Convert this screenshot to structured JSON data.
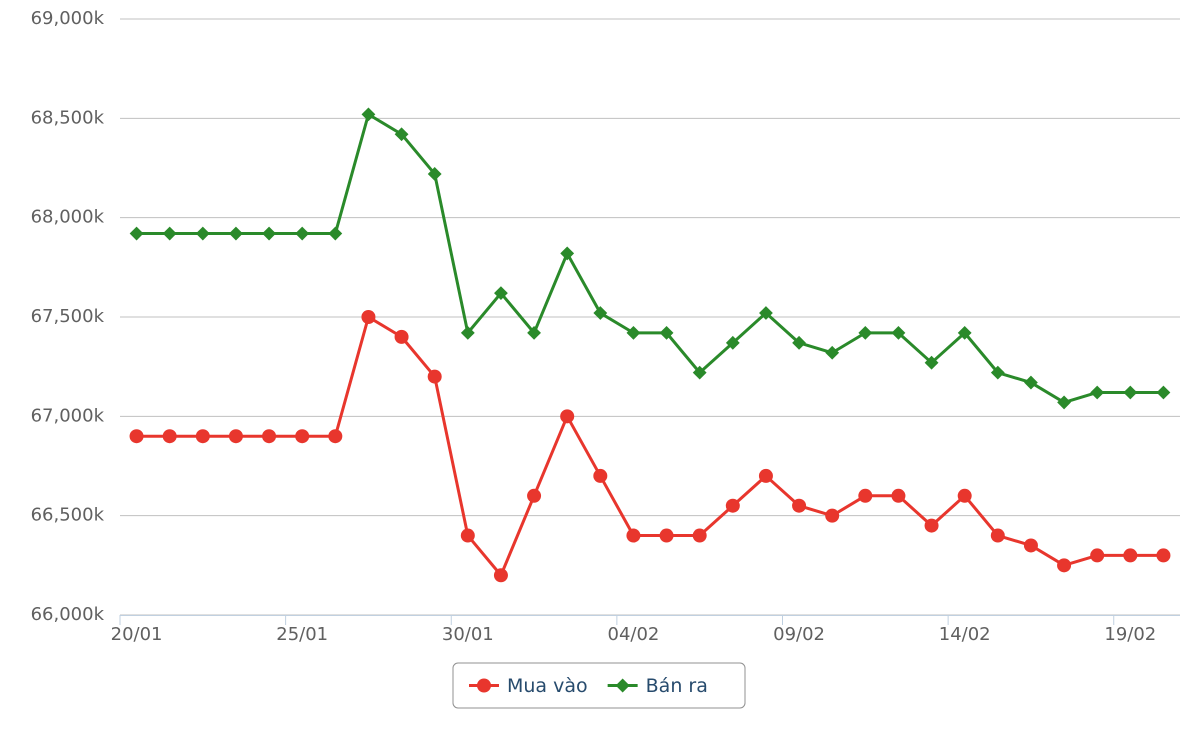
{
  "chart_data": {
    "type": "line",
    "categories": [
      "20/01",
      null,
      null,
      null,
      null,
      "25/01",
      null,
      null,
      null,
      null,
      "30/01",
      null,
      null,
      null,
      null,
      "04/02",
      null,
      null,
      null,
      null,
      "09/02",
      null,
      null,
      null,
      null,
      "14/02",
      null,
      null,
      null,
      null,
      "19/02",
      null
    ],
    "series": [
      {
        "name": "Mua vào",
        "color": "#e8362d",
        "marker": "circle",
        "values": [
          66900,
          66900,
          66900,
          66900,
          66900,
          66900,
          66900,
          67500,
          67400,
          67200,
          66400,
          66200,
          66600,
          67000,
          66700,
          66400,
          66400,
          66400,
          66550,
          66700,
          66550,
          66500,
          66600,
          66600,
          66450,
          66600,
          66400,
          66350,
          66250,
          66300,
          66300,
          66300
        ]
      },
      {
        "name": "Bán ra",
        "color": "#2a8a2a",
        "marker": "diamond",
        "values": [
          67920,
          67920,
          67920,
          67920,
          67920,
          67920,
          67920,
          68520,
          68420,
          68220,
          67420,
          67620,
          67420,
          67820,
          67520,
          67420,
          67420,
          67220,
          67370,
          67520,
          67370,
          67320,
          67420,
          67420,
          67270,
          67420,
          67220,
          67170,
          67070,
          67120,
          67120,
          67120
        ]
      }
    ],
    "ylim": [
      66000,
      69000
    ],
    "yticks": [
      {
        "value": 66000,
        "label": "66,000k"
      },
      {
        "value": 66500,
        "label": "66,500k"
      },
      {
        "value": 67000,
        "label": "67,000k"
      },
      {
        "value": 67500,
        "label": "67,500k"
      },
      {
        "value": 68000,
        "label": "68,000k"
      },
      {
        "value": 68500,
        "label": "68,500k"
      },
      {
        "value": 69000,
        "label": "69,000k"
      }
    ],
    "grid": true,
    "legend": "bottom"
  }
}
